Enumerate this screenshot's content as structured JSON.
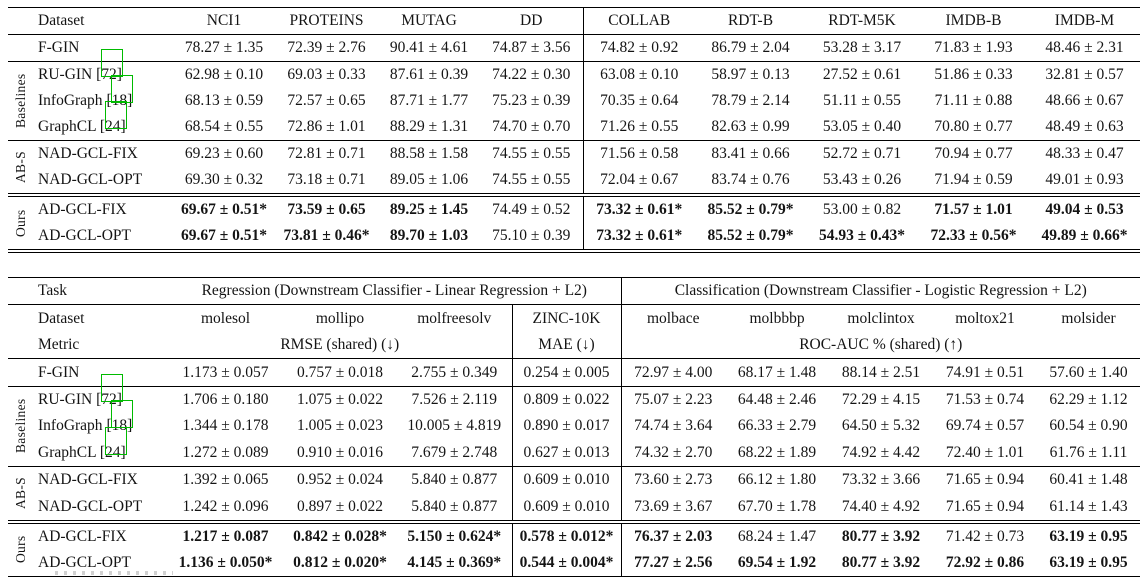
{
  "colors": {
    "rule": "#000000",
    "text": "#141414",
    "citation_box_green": "#00bb00"
  },
  "table_tu_benchmarks": {
    "columns": [
      "Dataset",
      "NCI1",
      "PROTEINS",
      "MUTAG",
      "DD",
      "COLLAB",
      "RDT-B",
      "RDT-M5K",
      "IMDB-B",
      "IMDB-M"
    ],
    "groups": [
      {
        "label": "",
        "rule_after": "single",
        "rows": [
          {
            "name": "F-GIN",
            "cite": "",
            "bold": [
              0,
              0,
              0,
              0,
              0,
              0,
              0,
              0,
              0
            ],
            "values": [
              "78.27 ± 1.35",
              "72.39 ± 2.76",
              "90.41 ± 4.61",
              "74.87 ± 3.56",
              "74.82 ± 0.92",
              "86.79 ± 2.04",
              "53.28 ± 3.17",
              "71.83 ± 1.93",
              "48.46 ± 2.31"
            ]
          }
        ]
      },
      {
        "label": "Baselines",
        "rule_after": "single",
        "rows": [
          {
            "name": "RU-GIN",
            "cite": "[72]",
            "bold": [
              0,
              0,
              0,
              0,
              0,
              0,
              0,
              0,
              0
            ],
            "values": [
              "62.98 ± 0.10",
              "69.03 ± 0.33",
              "87.61 ± 0.39",
              "74.22 ± 0.30",
              "63.08 ± 0.10",
              "58.97 ± 0.13",
              "27.52 ± 0.61",
              "51.86 ± 0.33",
              "32.81 ± 0.57"
            ]
          },
          {
            "name": "InfoGraph",
            "cite": "[18]",
            "bold": [
              0,
              0,
              0,
              0,
              0,
              0,
              0,
              0,
              0
            ],
            "values": [
              "68.13 ± 0.59",
              "72.57 ± 0.65",
              "87.71 ± 1.77",
              "75.23 ± 0.39",
              "70.35 ± 0.64",
              "78.79 ± 2.14",
              "51.11 ± 0.55",
              "71.11 ± 0.88",
              "48.66 ± 0.67"
            ]
          },
          {
            "name": "GraphCL",
            "cite": "[24]",
            "bold": [
              0,
              0,
              0,
              0,
              0,
              0,
              0,
              0,
              0
            ],
            "values": [
              "68.54 ± 0.55",
              "72.86 ± 1.01",
              "88.29 ± 1.31",
              "74.70 ± 0.70",
              "71.26 ± 0.55",
              "82.63 ± 0.99",
              "53.05 ± 0.40",
              "70.80 ± 0.77",
              "48.49 ± 0.63"
            ]
          }
        ]
      },
      {
        "label": "AB-S",
        "rule_after": "double",
        "rows": [
          {
            "name": "NAD-GCL-FIX",
            "cite": "",
            "bold": [
              0,
              0,
              0,
              0,
              0,
              0,
              0,
              0,
              0
            ],
            "values": [
              "69.23 ± 0.60",
              "72.81 ± 0.71",
              "88.58 ± 1.58",
              "74.55 ± 0.55",
              "71.56 ± 0.58",
              "83.41 ± 0.66",
              "52.72 ± 0.71",
              "70.94 ± 0.77",
              "48.33 ± 0.47"
            ]
          },
          {
            "name": "NAD-GCL-OPT",
            "cite": "",
            "bold": [
              0,
              0,
              0,
              0,
              0,
              0,
              0,
              0,
              0
            ],
            "values": [
              "69.30 ± 0.32",
              "73.18 ± 0.71",
              "89.05 ± 1.06",
              "74.55 ± 0.55",
              "72.04 ± 0.67",
              "83.74 ± 0.76",
              "53.43 ± 0.26",
              "71.94 ± 0.59",
              "49.01 ± 0.93"
            ]
          }
        ]
      },
      {
        "label": "Ours",
        "rule_after": "double",
        "rows": [
          {
            "name": "AD-GCL-FIX",
            "cite": "",
            "bold": [
              1,
              1,
              1,
              0,
              1,
              1,
              0,
              1,
              1
            ],
            "values": [
              "69.67 ± 0.51*",
              "73.59 ± 0.65",
              "89.25 ± 1.45",
              "74.49 ± 0.52",
              "73.32 ± 0.61*",
              "85.52 ± 0.79*",
              "53.00 ± 0.82",
              "71.57 ± 1.01",
              "49.04 ± 0.53"
            ]
          },
          {
            "name": "AD-GCL-OPT",
            "cite": "",
            "bold": [
              1,
              1,
              1,
              0,
              1,
              1,
              1,
              1,
              1
            ],
            "values": [
              "69.67 ± 0.51*",
              "73.81 ± 0.46*",
              "89.70 ± 1.03",
              "75.10 ± 0.39",
              "73.32 ± 0.61*",
              "85.52 ± 0.79*",
              "54.93 ± 0.43*",
              "72.33 ± 0.56*",
              "49.89 ± 0.66*"
            ]
          }
        ]
      }
    ]
  },
  "table_ogb_benchmarks": {
    "header": {
      "task_label": "Task",
      "regression_header": "Regression (Downstream Classifier - Linear Regression + L2)",
      "classification_header": "Classification (Downstream Classifier - Logistic Regression + L2)",
      "dataset_label": "Dataset",
      "datasets": [
        "molesol",
        "mollipo",
        "molfreesolv",
        "ZINC-10K",
        "molbace",
        "molbbbp",
        "molclintox",
        "moltox21",
        "molsider"
      ],
      "metric_label": "Metric",
      "rmse_metric": "RMSE (shared) (↓)",
      "mae_metric": "MAE (↓)",
      "rocauc_metric": "ROC-AUC % (shared) (↑)"
    },
    "groups": [
      {
        "label": "",
        "rule_after": "single",
        "rows": [
          {
            "name": "F-GIN",
            "cite": "",
            "bold": [
              0,
              0,
              0,
              0,
              0,
              0,
              0,
              0,
              0
            ],
            "values": [
              "1.173 ± 0.057",
              "0.757 ± 0.018",
              "2.755 ± 0.349",
              "0.254 ± 0.005",
              "72.97 ± 4.00",
              "68.17 ± 1.48",
              "88.14 ± 2.51",
              "74.91 ± 0.51",
              "57.60 ± 1.40"
            ]
          }
        ]
      },
      {
        "label": "Baselines",
        "rule_after": "single",
        "rows": [
          {
            "name": "RU-GIN",
            "cite": "[72]",
            "bold": [
              0,
              0,
              0,
              0,
              0,
              0,
              0,
              0,
              0
            ],
            "values": [
              "1.706 ± 0.180",
              "1.075 ± 0.022",
              "7.526 ± 2.119",
              "0.809 ± 0.022",
              "75.07 ± 2.23",
              "64.48 ± 2.46",
              "72.29 ± 4.15",
              "71.53 ± 0.74",
              "62.29 ± 1.12"
            ]
          },
          {
            "name": "InfoGraph",
            "cite": "[18]",
            "bold": [
              0,
              0,
              0,
              0,
              0,
              0,
              0,
              0,
              0
            ],
            "values": [
              "1.344 ± 0.178",
              "1.005 ± 0.023",
              "10.005 ± 4.819",
              "0.890 ± 0.017",
              "74.74 ± 3.64",
              "66.33 ± 2.79",
              "64.50 ± 5.32",
              "69.74 ± 0.57",
              "60.54 ± 0.90"
            ]
          },
          {
            "name": "GraphCL",
            "cite": "[24]",
            "bold": [
              0,
              0,
              0,
              0,
              0,
              0,
              0,
              0,
              0
            ],
            "values": [
              "1.272 ± 0.089",
              "0.910 ± 0.016",
              "7.679 ± 2.748",
              "0.627 ± 0.013",
              "74.32 ± 2.70",
              "68.22 ± 1.89",
              "74.92 ± 4.42",
              "72.40 ± 1.01",
              "61.76 ± 1.11"
            ]
          }
        ]
      },
      {
        "label": "AB-S",
        "rule_after": "double",
        "rows": [
          {
            "name": "NAD-GCL-FIX",
            "cite": "",
            "bold": [
              0,
              0,
              0,
              0,
              0,
              0,
              0,
              0,
              0
            ],
            "values": [
              "1.392 ± 0.065",
              "0.952 ± 0.024",
              "5.840 ± 0.877",
              "0.609 ± 0.010",
              "73.60 ± 2.73",
              "66.12 ± 1.80",
              "73.32 ± 3.66",
              "71.65 ± 0.94",
              "60.41 ± 1.48"
            ]
          },
          {
            "name": "NAD-GCL-OPT",
            "cite": "",
            "bold": [
              0,
              0,
              0,
              0,
              0,
              0,
              0,
              0,
              0
            ],
            "values": [
              "1.242 ± 0.096",
              "0.897 ± 0.022",
              "5.840 ± 0.877",
              "0.609 ± 0.010",
              "73.69 ± 3.67",
              "67.70 ± 1.78",
              "74.40 ± 4.92",
              "71.65 ± 0.94",
              "61.14 ± 1.43"
            ]
          }
        ]
      },
      {
        "label": "Ours",
        "rule_after": "double",
        "rows": [
          {
            "name": "AD-GCL-FIX",
            "cite": "",
            "bold": [
              1,
              1,
              1,
              1,
              1,
              0,
              1,
              0,
              1
            ],
            "values": [
              "1.217 ± 0.087",
              "0.842 ± 0.028*",
              "5.150 ± 0.624*",
              "0.578 ± 0.012*",
              "76.37 ± 2.03",
              "68.24 ± 1.47",
              "80.77 ± 3.92",
              "71.42 ± 0.73",
              "63.19 ± 0.95"
            ]
          },
          {
            "name": "AD-GCL-OPT",
            "cite": "",
            "bold": [
              1,
              1,
              1,
              1,
              1,
              1,
              1,
              1,
              1
            ],
            "values": [
              "1.136 ± 0.050*",
              "0.812 ± 0.020*",
              "4.145 ± 0.369*",
              "0.544 ± 0.004*",
              "77.27 ± 2.56",
              "69.54 ± 1.92",
              "80.77 ± 3.92",
              "72.92 ± 0.86",
              "63.19 ± 0.95"
            ]
          }
        ]
      }
    ]
  }
}
